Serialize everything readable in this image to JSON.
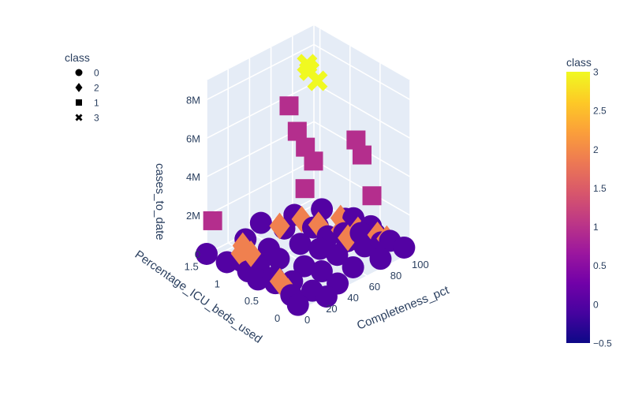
{
  "chart_data": {
    "type": "scatter3d",
    "legend": {
      "title": "class",
      "placement": "top-left",
      "entries": [
        {
          "label": "0",
          "symbol": "circle"
        },
        {
          "label": "2",
          "symbol": "diamond"
        },
        {
          "label": "1",
          "symbol": "square"
        },
        {
          "label": "3",
          "symbol": "x"
        }
      ]
    },
    "colorbar": {
      "title": "class",
      "range": [
        -0.5,
        3
      ],
      "ticks": [
        "3",
        "2.5",
        "2",
        "1.5",
        "1",
        "0.5",
        "0",
        "−0.5"
      ],
      "colorscale": [
        "#0d0887",
        "#46039f",
        "#7201a8",
        "#9c179e",
        "#bd3786",
        "#d8576b",
        "#ed7953",
        "#fb9f3a",
        "#fdca26",
        "#f0f921"
      ]
    },
    "axes": {
      "x": {
        "title": "Completeness_pct",
        "ticks": [
          "0",
          "20",
          "40",
          "60",
          "80",
          "100"
        ],
        "range": [
          0,
          100
        ]
      },
      "y": {
        "title": "Percentage_ICU_beds_used",
        "ticks": [
          "0",
          "0.5",
          "1",
          "1.5"
        ],
        "range": [
          0,
          1.6
        ]
      },
      "z": {
        "title": "cases_to_date",
        "ticks": [
          "0",
          "2M",
          "4M",
          "6M",
          "8M"
        ],
        "range": [
          0,
          9000000
        ]
      }
    },
    "grid": true,
    "background": "#e5ecf6",
    "class_colors": {
      "0": "#5302a3",
      "1": "#b42e8d",
      "2": "#f0804f",
      "3": "#f0f921"
    },
    "series": [
      {
        "name": "0",
        "symbol": "circle",
        "points": [
          [
            0,
            1.6,
            0
          ],
          [
            2,
            1.3,
            50000
          ],
          [
            5,
            1.0,
            30000
          ],
          [
            3,
            0.8,
            20000
          ],
          [
            8,
            0.6,
            40000
          ],
          [
            6,
            0.3,
            15000
          ],
          [
            1,
            0.1,
            10000
          ],
          [
            10,
            1.2,
            60000
          ],
          [
            15,
            1.0,
            80000
          ],
          [
            12,
            0.7,
            50000
          ],
          [
            18,
            0.5,
            30000
          ],
          [
            20,
            0.2,
            25000
          ],
          [
            22,
            0.0,
            20000
          ],
          [
            25,
            1.4,
            400000
          ],
          [
            30,
            1.1,
            300000
          ],
          [
            28,
            0.9,
            200000
          ],
          [
            35,
            0.6,
            150000
          ],
          [
            40,
            0.4,
            100000
          ],
          [
            38,
            0.1,
            60000
          ],
          [
            45,
            1.5,
            500000
          ],
          [
            50,
            1.2,
            600000
          ],
          [
            48,
            0.9,
            400000
          ],
          [
            55,
            0.7,
            300000
          ],
          [
            60,
            0.5,
            200000
          ],
          [
            58,
            0.2,
            150000
          ],
          [
            65,
            1.3,
            700000
          ],
          [
            70,
            1.0,
            500000
          ],
          [
            68,
            0.8,
            400000
          ],
          [
            75,
            0.6,
            300000
          ],
          [
            80,
            0.4,
            250000
          ],
          [
            78,
            0.1,
            200000
          ],
          [
            85,
            1.2,
            600000
          ],
          [
            90,
            0.9,
            500000
          ],
          [
            88,
            0.7,
            400000
          ],
          [
            95,
            0.5,
            300000
          ],
          [
            98,
            0.3,
            200000
          ],
          [
            100,
            0.1,
            150000
          ],
          [
            60,
            0.9,
            900000
          ],
          [
            72,
            0.6,
            800000
          ],
          [
            82,
            0.5,
            700000
          ],
          [
            92,
            0.8,
            650000
          ],
          [
            97,
            0.6,
            450000
          ],
          [
            90,
            0.3,
            350000
          ]
        ]
      },
      {
        "name": "2",
        "symbol": "diamond",
        "points": [
          [
            0,
            1.0,
            1500000
          ],
          [
            2,
            0.9,
            1200000
          ],
          [
            4,
            1.1,
            800000
          ],
          [
            1,
            0.4,
            700000
          ],
          [
            3,
            0.3,
            300000
          ],
          [
            40,
            1.1,
            1200000
          ],
          [
            55,
            1.0,
            1300000
          ],
          [
            65,
            0.9,
            900000
          ],
          [
            75,
            0.7,
            700000
          ],
          [
            85,
            0.6,
            600000
          ],
          [
            92,
            0.4,
            500000
          ],
          [
            95,
            0.3,
            400000
          ],
          [
            70,
            0.5,
            800000
          ],
          [
            80,
            0.8,
            1000000
          ]
        ]
      },
      {
        "name": "1",
        "symbol": "square",
        "points": [
          [
            0,
            1.5,
            1900000
          ],
          [
            60,
            1.3,
            6500000
          ],
          [
            62,
            1.2,
            5300000
          ],
          [
            64,
            1.1,
            4600000
          ],
          [
            66,
            1.0,
            4000000
          ],
          [
            58,
            1.0,
            2800000
          ],
          [
            100,
            0.9,
            4300000
          ],
          [
            100,
            0.8,
            3700000
          ],
          [
            98,
            0.6,
            2000000
          ]
        ]
      },
      {
        "name": "3",
        "symbol": "x",
        "points": [
          [
            60,
            1.0,
            9200000
          ],
          [
            62,
            1.0,
            8800000
          ],
          [
            64,
            0.9,
            8400000
          ]
        ]
      }
    ]
  }
}
